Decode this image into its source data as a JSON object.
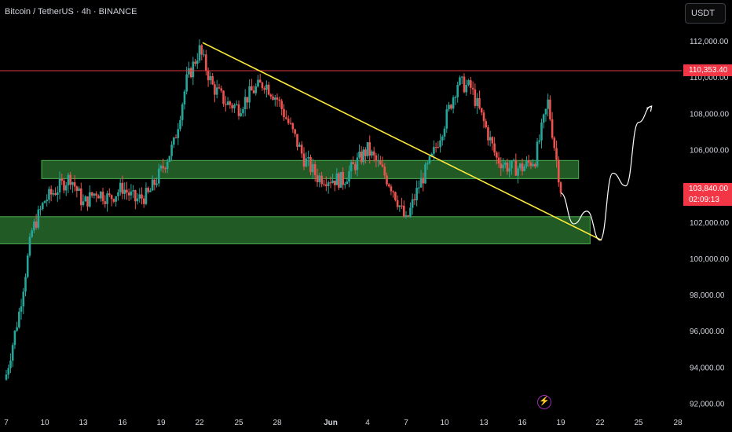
{
  "header": {
    "title": "Bitcoin / TetherUS · 4h · BINANCE"
  },
  "currency_button": "USDT",
  "current_price": {
    "value": "103,840.00",
    "countdown": "02:09:13"
  },
  "resistance_label": "110,353.40",
  "colors": {
    "up": "#26a69a",
    "down": "#ef5350",
    "zone": "#2e7d32",
    "trendline": "#ffeb3b",
    "resistance": "#e53945",
    "path": "#ffffff",
    "price_tag": "#f23645"
  },
  "icons": {
    "flash": "flash-icon"
  },
  "chart_data": {
    "type": "candlestick",
    "symbol": "Bitcoin / TetherUS",
    "interval": "4h",
    "exchange": "BINANCE",
    "x_ticks": [
      "7",
      "10",
      "13",
      "16",
      "19",
      "22",
      "25",
      "28",
      "Jun",
      "4",
      "7",
      "10",
      "13",
      "16",
      "19",
      "22",
      "25",
      "28"
    ],
    "y_ticks": [
      92000,
      94000,
      96000,
      98000,
      100000,
      102000,
      104000,
      106000,
      108000,
      110000,
      112000
    ],
    "y_tick_labels": [
      "92,000.00",
      "94,000.00",
      "96,000.00",
      "98,000.00",
      "100,000.00",
      "102,000.00",
      "104,000.00",
      "106,000.00",
      "108,000.00",
      "110,000.00",
      "112,000.00"
    ],
    "ylim": [
      91500,
      113000
    ],
    "price_path": [
      [
        "May 7",
        93600
      ],
      [
        "May 8",
        97000
      ],
      [
        "May 9",
        101500
      ],
      [
        "May 10",
        103200
      ],
      [
        "May 12",
        104500
      ],
      [
        "May 13",
        103000
      ],
      [
        "May 14",
        103700
      ],
      [
        "May 15",
        103300
      ],
      [
        "May 16",
        103900
      ],
      [
        "May 17",
        103200
      ],
      [
        "May 18",
        103500
      ],
      [
        "May 19",
        104800
      ],
      [
        "May 20",
        106300
      ],
      [
        "May 21",
        109800
      ],
      [
        "May 22",
        111500
      ],
      [
        "May 23",
        109500
      ],
      [
        "May 24",
        108600
      ],
      [
        "May 25",
        108300
      ],
      [
        "May 26",
        109200
      ],
      [
        "May 27",
        109700
      ],
      [
        "May 28",
        108800
      ],
      [
        "May 29",
        107200
      ],
      [
        "May 30",
        105500
      ],
      [
        "May 31",
        104500
      ],
      [
        "Jun 1",
        104300
      ],
      [
        "Jun 2",
        105200
      ],
      [
        "Jun 3",
        106000
      ],
      [
        "Jun 4",
        105000
      ],
      [
        "Jun 5",
        103800
      ],
      [
        "Jun 6",
        102000
      ],
      [
        "Jun 7",
        104000
      ],
      [
        "Jun 8",
        105500
      ],
      [
        "Jun 9",
        107500
      ],
      [
        "Jun 10",
        109700
      ],
      [
        "Jun 11",
        109400
      ],
      [
        "Jun 12",
        107500
      ],
      [
        "Jun 13",
        105500
      ],
      [
        "Jun 14",
        105000
      ],
      [
        "Jun 15",
        105000
      ],
      [
        "Jun 16",
        105500
      ],
      [
        "Jun 17",
        108600
      ],
      [
        "Jun 18",
        103840
      ]
    ],
    "annotations": {
      "resistance_line": 110353.4,
      "support_zones": [
        {
          "low": 104400,
          "high": 105400,
          "from": "May 10",
          "to": "Jun 19"
        },
        {
          "low": 100800,
          "high": 102300,
          "from": "May 7",
          "to": "Jun 20"
        }
      ],
      "trendline": {
        "from": [
          "May 22",
          111900
        ],
        "to": [
          "Jun 21",
          101000
        ]
      },
      "projection": [
        [
          "Jun 18",
          103600
        ],
        [
          "Jun 19",
          101900
        ],
        [
          "Jun 20",
          102600
        ],
        [
          "Jun 21",
          101000
        ],
        [
          "Jun 22",
          104700
        ],
        [
          "Jun 23",
          104000
        ],
        [
          "Jun 24",
          107500
        ],
        [
          "Jun 25",
          108400
        ]
      ]
    },
    "current_price": 103840,
    "grid": false
  }
}
